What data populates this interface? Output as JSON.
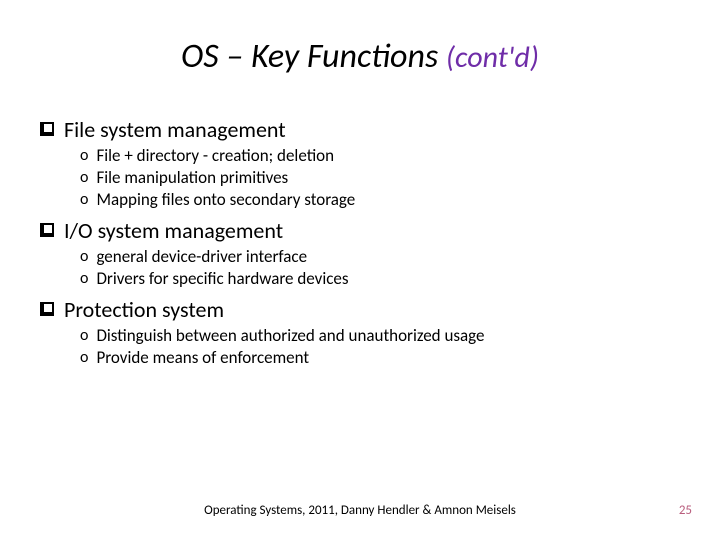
{
  "title": {
    "main": "OS – Key Functions ",
    "contd": "(cont'd)",
    "main_fontsize": 34,
    "contd_fontsize": 30,
    "main_color": "#000000",
    "contd_color": "#6f2da8",
    "font_style": "italic"
  },
  "sections": [
    {
      "heading": "File system management",
      "items": [
        "File + directory - creation; deletion",
        "File manipulation primitives",
        "Mapping files onto secondary storage"
      ]
    },
    {
      "heading": "I/O system management",
      "items": [
        "general device-driver interface",
        "Drivers for specific hardware devices"
      ]
    },
    {
      "heading": "Protection system",
      "items": [
        "Distinguish between authorized and unauthorized usage",
        "Provide means of enforcement"
      ]
    }
  ],
  "footer": {
    "text": "Operating Systems, 2011, Danny Hendler & Amnon Meisels",
    "page_number": "25",
    "page_number_color": "#b85c7c"
  },
  "style": {
    "background": "#ffffff",
    "l1_fontsize": 22,
    "l2_fontsize": 17,
    "l1_bullet": "checkbox",
    "l2_bullet": "o"
  }
}
